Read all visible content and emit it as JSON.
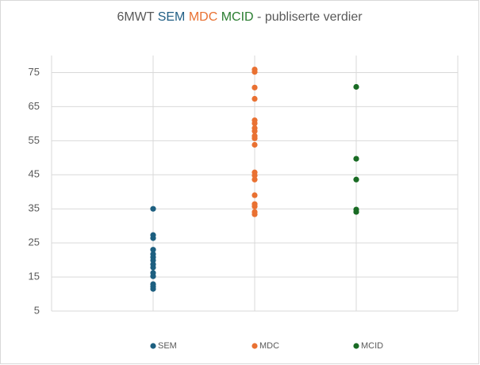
{
  "chart_data": {
    "type": "strip",
    "title_parts": [
      {
        "text": "6MWT ",
        "color": "#595959"
      },
      {
        "text": "SEM ",
        "color": "#215f85"
      },
      {
        "text": "MDC ",
        "color": "#e97132"
      },
      {
        "text": "MCID ",
        "color": "#2a7d30"
      },
      {
        "text": "- publiserte verdier",
        "color": "#595959"
      }
    ],
    "ylim": [
      5,
      80
    ],
    "yticks": [
      5,
      15,
      25,
      35,
      45,
      55,
      65,
      75
    ],
    "grid": true,
    "legend": "bottom",
    "series": [
      {
        "name": "SEM",
        "color": "#1d5f80",
        "values": [
          35,
          27.3,
          26.4,
          23,
          21.7,
          20.8,
          19.9,
          18.7,
          17.8,
          16.2,
          15.2,
          12.9,
          12.2,
          11.5
        ]
      },
      {
        "name": "MDC",
        "color": "#e97132",
        "values": [
          75.9,
          75.2,
          70.6,
          67.3,
          61,
          60.1,
          58.7,
          57.8,
          56.4,
          55.7,
          53.8,
          45.7,
          44.8,
          43.6,
          39,
          36.4,
          35.7,
          34.1,
          33.4
        ]
      },
      {
        "name": "MCID",
        "color": "#196b24",
        "values": [
          70.8,
          49.7,
          43.6,
          34.8,
          34.1
        ]
      }
    ]
  }
}
